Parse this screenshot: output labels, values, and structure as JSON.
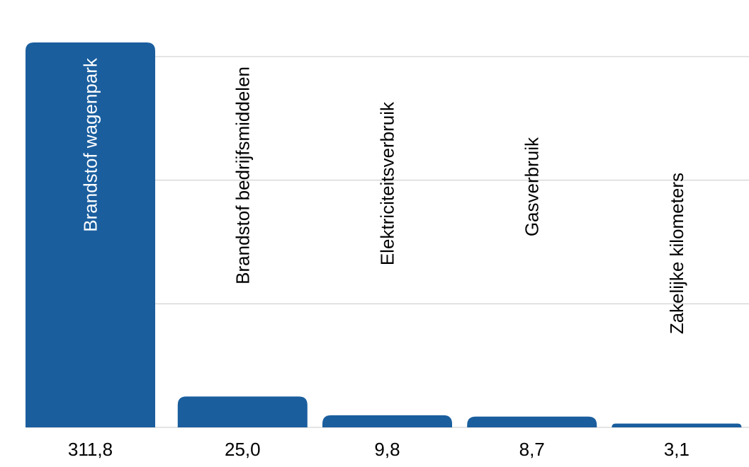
{
  "chart_data": {
    "type": "bar",
    "categories": [
      "Brandstof wagenpark",
      "Brandstof bedrijfsmiddelen",
      "Elektriciteitsverbruik",
      "Gasverbruik",
      "Zakelijke kilometers"
    ],
    "values": [
      311.8,
      25.0,
      9.8,
      8.7,
      3.1
    ],
    "value_labels": [
      "311,8",
      "25,0",
      "9,8",
      "8,7",
      "3,1"
    ],
    "title": "",
    "xlabel": "",
    "ylabel": "",
    "ylim": [
      0,
      300
    ],
    "grid": true,
    "legend": "none",
    "colors": {
      "bar": "#1a5e9e",
      "grid": "#c8c8c8",
      "label_inside": "#ffffff",
      "label_outside": "#000000"
    }
  }
}
